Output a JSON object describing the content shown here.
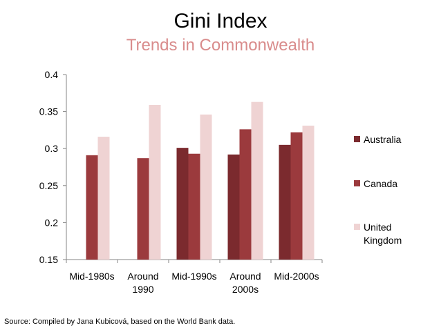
{
  "chart_data": {
    "type": "bar",
    "title": "Gini Index",
    "subtitle": "Trends in Commonwealth",
    "categories": [
      [
        "Mid-1980s"
      ],
      [
        "Around",
        "1990"
      ],
      [
        "Mid-1990s"
      ],
      [
        "Around",
        "2000s"
      ],
      [
        "Mid-2000s"
      ]
    ],
    "series": [
      {
        "name": "Australia",
        "color": "#7b2a2e",
        "values": [
          null,
          null,
          0.301,
          0.292,
          0.305
        ]
      },
      {
        "name": "Canada",
        "color": "#9b3a3d",
        "values": [
          0.291,
          0.287,
          0.293,
          0.326,
          0.322
        ]
      },
      {
        "name": "United Kingdom",
        "legend_lines": [
          "United",
          "Kingdom"
        ],
        "color": "#efd3d3",
        "values": [
          0.316,
          0.359,
          0.346,
          0.363,
          0.331
        ]
      }
    ],
    "yticks": [
      "0.4",
      "0.35",
      "0.3",
      "0.25",
      "0.2",
      "0.15"
    ],
    "ylim": [
      0.15,
      0.4
    ],
    "grid": false,
    "legend": "right",
    "subtitle_color": "#d98c8c"
  },
  "source": "Source: Compiled by Jana Kubicová, based on the World Bank data."
}
